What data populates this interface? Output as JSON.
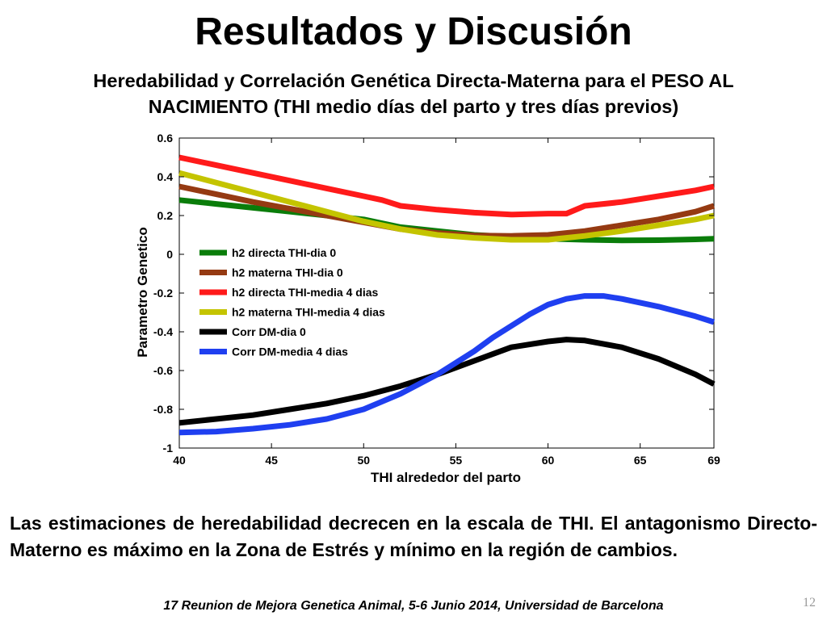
{
  "slide": {
    "title": "Resultados y Discusión",
    "subtitle_line1": "Heredabilidad y Correlación Genética Directa-Materna para el PESO AL",
    "subtitle_line2": "NACIMIENTO (THI medio días del parto y tres días previos)",
    "body_text": "Las estimaciones de heredabilidad decrecen en la escala de THI. El antagonismo Directo-Materno es máximo en la Zona de Estrés y mínimo en la región de cambios.",
    "footer": "17 Reunion de Mejora Genetica Animal, 5-6 Junio 2014, Universidad de Barcelona",
    "page_number": "12"
  },
  "chart_data": {
    "type": "line",
    "title": "",
    "xlabel": "THI alrededor del parto",
    "ylabel": "Parametro Genetico",
    "xlim": [
      40,
      69
    ],
    "ylim": [
      -1,
      0.6
    ],
    "xticks": [
      40,
      45,
      50,
      55,
      60,
      65,
      69
    ],
    "yticks": [
      -1,
      -0.8,
      -0.6,
      -0.4,
      -0.2,
      0,
      0.2,
      0.4,
      0.6
    ],
    "ytick_labels": [
      "-1",
      "-0.8",
      "-0.6",
      "-0.4",
      "-0.2",
      "0",
      "0.2",
      "0.4",
      "0.6"
    ],
    "grid": false,
    "legend_position": "left",
    "series": [
      {
        "name": "h2 directa THI-dia 0",
        "color": "#0a7d0a",
        "x": [
          40,
          42,
          44,
          46,
          48,
          50,
          52,
          54,
          56,
          58,
          60,
          62,
          64,
          66,
          68,
          69
        ],
        "y": [
          0.28,
          0.26,
          0.24,
          0.22,
          0.2,
          0.18,
          0.14,
          0.12,
          0.1,
          0.09,
          0.08,
          0.075,
          0.072,
          0.073,
          0.077,
          0.08
        ]
      },
      {
        "name": "h2 materna THI-dia 0",
        "color": "#953a12",
        "x": [
          40,
          42,
          44,
          46,
          48,
          50,
          52,
          54,
          56,
          58,
          60,
          62,
          64,
          66,
          68,
          69
        ],
        "y": [
          0.35,
          0.31,
          0.27,
          0.235,
          0.2,
          0.165,
          0.13,
          0.11,
          0.097,
          0.095,
          0.1,
          0.12,
          0.15,
          0.18,
          0.22,
          0.25
        ]
      },
      {
        "name": "h2 directa THI-media 4 dias",
        "color": "#ff1a1a",
        "x": [
          40,
          42,
          44,
          46,
          48,
          50,
          51,
          52,
          54,
          56,
          58,
          60,
          61,
          62,
          64,
          66,
          68,
          69
        ],
        "y": [
          0.5,
          0.46,
          0.42,
          0.38,
          0.34,
          0.3,
          0.28,
          0.25,
          0.23,
          0.215,
          0.205,
          0.21,
          0.21,
          0.25,
          0.27,
          0.3,
          0.33,
          0.35
        ]
      },
      {
        "name": "h2 materna THI-media 4 dias",
        "color": "#c4c400",
        "x": [
          40,
          42,
          44,
          46,
          48,
          50,
          52,
          54,
          56,
          58,
          60,
          62,
          64,
          66,
          68,
          69
        ],
        "y": [
          0.42,
          0.37,
          0.32,
          0.27,
          0.22,
          0.17,
          0.13,
          0.1,
          0.085,
          0.075,
          0.075,
          0.095,
          0.12,
          0.15,
          0.18,
          0.2
        ]
      },
      {
        "name": "Corr DM-dia 0",
        "color": "#000000",
        "x": [
          40,
          42,
          44,
          46,
          48,
          50,
          52,
          54,
          56,
          58,
          60,
          61,
          62,
          64,
          66,
          68,
          69
        ],
        "y": [
          -0.87,
          -0.85,
          -0.83,
          -0.8,
          -0.77,
          -0.73,
          -0.68,
          -0.62,
          -0.55,
          -0.48,
          -0.45,
          -0.44,
          -0.445,
          -0.48,
          -0.54,
          -0.62,
          -0.67
        ]
      },
      {
        "name": "Corr DM-media 4 dias",
        "color": "#1f3ff0",
        "x": [
          40,
          42,
          44,
          46,
          48,
          50,
          52,
          54,
          56,
          57,
          58,
          59,
          60,
          61,
          62,
          63,
          64,
          66,
          68,
          69
        ],
        "y": [
          -0.92,
          -0.915,
          -0.9,
          -0.88,
          -0.85,
          -0.8,
          -0.72,
          -0.62,
          -0.5,
          -0.43,
          -0.37,
          -0.31,
          -0.26,
          -0.23,
          -0.215,
          -0.215,
          -0.23,
          -0.27,
          -0.32,
          -0.35
        ]
      }
    ]
  }
}
